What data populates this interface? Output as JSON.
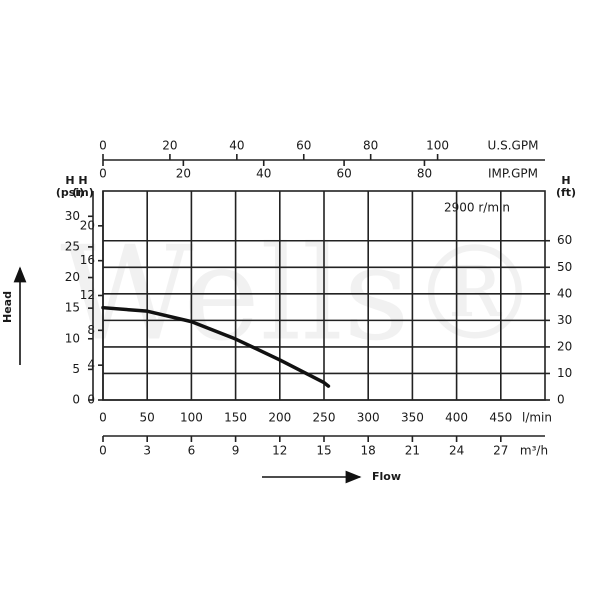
{
  "chart_data": {
    "type": "line",
    "watermark": "Wells®",
    "speed_label": "2900 r/min",
    "y_title": "Head",
    "x_title": "Flow",
    "x": [
      0,
      50,
      100,
      150,
      200,
      250,
      255
    ],
    "series": [
      {
        "name": "2900 r/min",
        "color": "#111111",
        "values": [
          10.6,
          10.2,
          9.0,
          7.0,
          4.6,
          2.0,
          1.6
        ]
      }
    ],
    "xlim": [
      0,
      500
    ],
    "xticks": [
      0,
      50,
      100,
      150,
      200,
      250,
      300,
      350,
      400,
      450
    ],
    "x_unit": "l/min",
    "ylim": [
      0,
      24
    ],
    "yticks": [
      0,
      4,
      8,
      12,
      16,
      20
    ],
    "y_label": "H",
    "y_unit": "(m)",
    "y2lim": [
      0,
      78.74
    ],
    "y2ticks": [
      0,
      10,
      20,
      30,
      40,
      50,
      60
    ],
    "y2_label": "H",
    "y2_unit": "(ft)",
    "psi_axis": {
      "label": "H",
      "unit": "(psi)",
      "lim": [
        0,
        34.13
      ],
      "ticks": [
        0,
        5,
        10,
        15,
        20,
        25,
        30
      ]
    },
    "usgpm_axis": {
      "unit": "U.S.GPM",
      "lim": [
        0,
        132.1
      ],
      "ticks": [
        0,
        20,
        40,
        60,
        80,
        100
      ]
    },
    "impgpm_axis": {
      "unit": "IMP.GPM",
      "lim": [
        0,
        110.0
      ],
      "ticks": [
        0,
        20,
        40,
        60,
        80
      ]
    },
    "m3h_axis": {
      "unit": "m³/h",
      "lim": [
        0,
        30
      ],
      "ticks": [
        0,
        3,
        6,
        9,
        12,
        15,
        18,
        21,
        24,
        27
      ]
    },
    "grid": true
  }
}
